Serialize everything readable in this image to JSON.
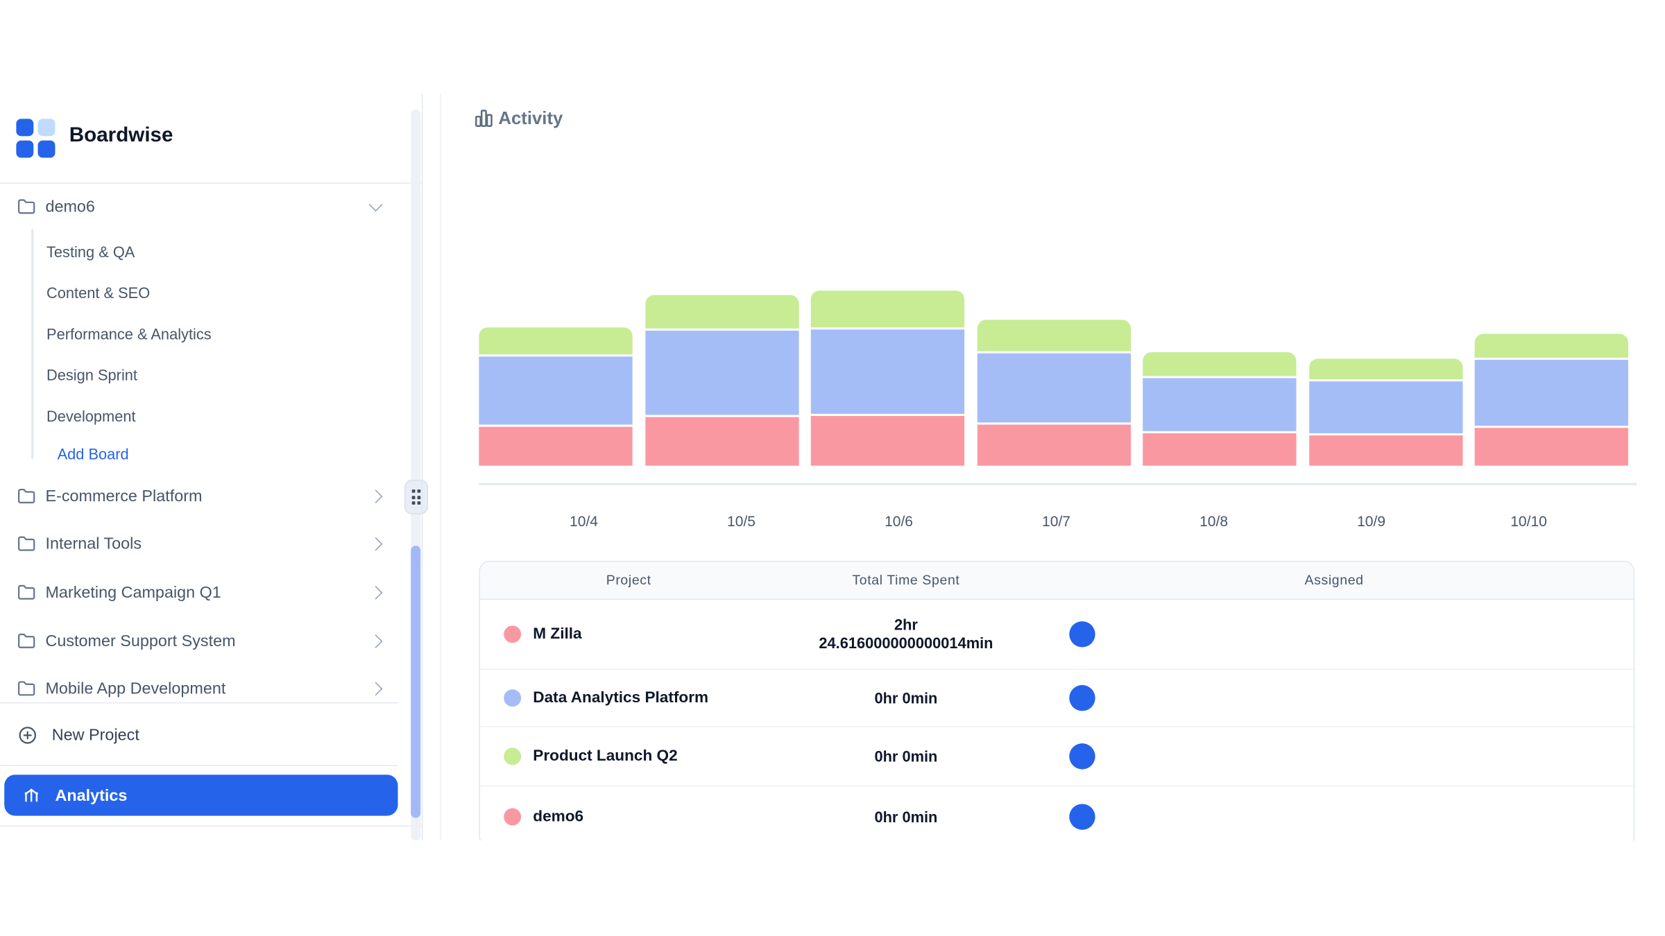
{
  "brand": "Boardwise",
  "colors": {
    "accent": "#2563eb",
    "pink": "#fa98a2",
    "periwinkle": "#a5bdf6",
    "green": "#c7ec94",
    "scroll_thumb": "#a3b9f7",
    "axis": "#e2e8f0",
    "avatar": "#2563eb"
  },
  "sidebar": {
    "active_project": {
      "label": "demo6",
      "expanded": true,
      "boards": [
        "Testing & QA",
        "Content & SEO",
        "Performance & Analytics",
        "Design Sprint",
        "Development"
      ],
      "add_board": "Add Board"
    },
    "projects": [
      "E-commerce Platform",
      "Internal Tools",
      "Marketing Campaign Q1",
      "Customer Support System",
      "Mobile App Development"
    ],
    "new_project": "New Project",
    "analytics": "Analytics"
  },
  "main": {
    "title": "Activity"
  },
  "chart_data": {
    "type": "bar",
    "stacked": true,
    "title": "Activity",
    "xlabel": "",
    "ylabel": "",
    "grid": false,
    "legend": false,
    "unit": "relative height units (no value axis shown in UI)",
    "categories": [
      "10/4",
      "10/5",
      "10/6",
      "10/7",
      "10/8",
      "10/9",
      "10/10"
    ],
    "series": [
      {
        "name": "M Zilla",
        "color": "#fa98a2",
        "values": [
          36,
          45,
          46,
          38,
          30,
          28,
          35
        ]
      },
      {
        "name": "Data Analytics Platform",
        "color": "#a5bdf6",
        "values": [
          63,
          78,
          78,
          64,
          49,
          48,
          61
        ]
      },
      {
        "name": "Product Launch Q2",
        "color": "#c7ec94",
        "values": [
          25,
          31,
          34,
          29,
          22,
          19,
          22
        ]
      }
    ],
    "notes": "Stacked order bottom-to-top: M Zilla (pink), Data Analytics Platform (periwinkle), Product Launch Q2 (green); top segment has rounded corners."
  },
  "table": {
    "columns": [
      "Project",
      "Total Time Spent",
      "Assigned"
    ],
    "rows": [
      {
        "project": "M Zilla",
        "color": "#fa98a2",
        "time_lines": [
          "2hr",
          "24.616000000000014min"
        ],
        "assigned": "blue-avatar"
      },
      {
        "project": "Data Analytics Platform",
        "color": "#a5bdf6",
        "time_lines": [
          "0hr 0min"
        ],
        "assigned": "blue-avatar"
      },
      {
        "project": "Product Launch Q2",
        "color": "#c7ec94",
        "time_lines": [
          "0hr 0min"
        ],
        "assigned": "blue-avatar"
      },
      {
        "project": "demo6",
        "color": "#fa98a2",
        "time_lines": [
          "0hr 0min"
        ],
        "assigned": "blue-avatar"
      }
    ]
  }
}
